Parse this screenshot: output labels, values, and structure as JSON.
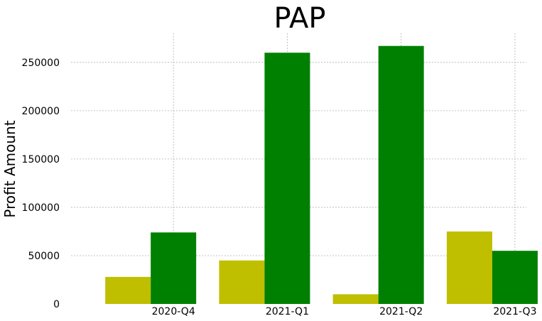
{
  "chart_data": {
    "type": "bar",
    "title": "PAP",
    "xlabel": "",
    "ylabel": "Profit Amount",
    "categories": [
      "2020-Q4",
      "2021-Q1",
      "2021-Q2",
      "2021-Q3"
    ],
    "series": [
      {
        "values": [
          28000,
          45000,
          10000,
          75000
        ],
        "color": "#bfbf00"
      },
      {
        "values": [
          74000,
          260000,
          267000,
          55000
        ],
        "color": "#008000"
      }
    ],
    "ylim": [
      0,
      280000
    ],
    "yticks": [
      "0",
      "50000",
      "100000",
      "150000",
      "200000",
      "250000"
    ],
    "ytick_values": [
      0,
      50000,
      100000,
      150000,
      200000,
      250000
    ],
    "grid": true,
    "legend": "none"
  }
}
